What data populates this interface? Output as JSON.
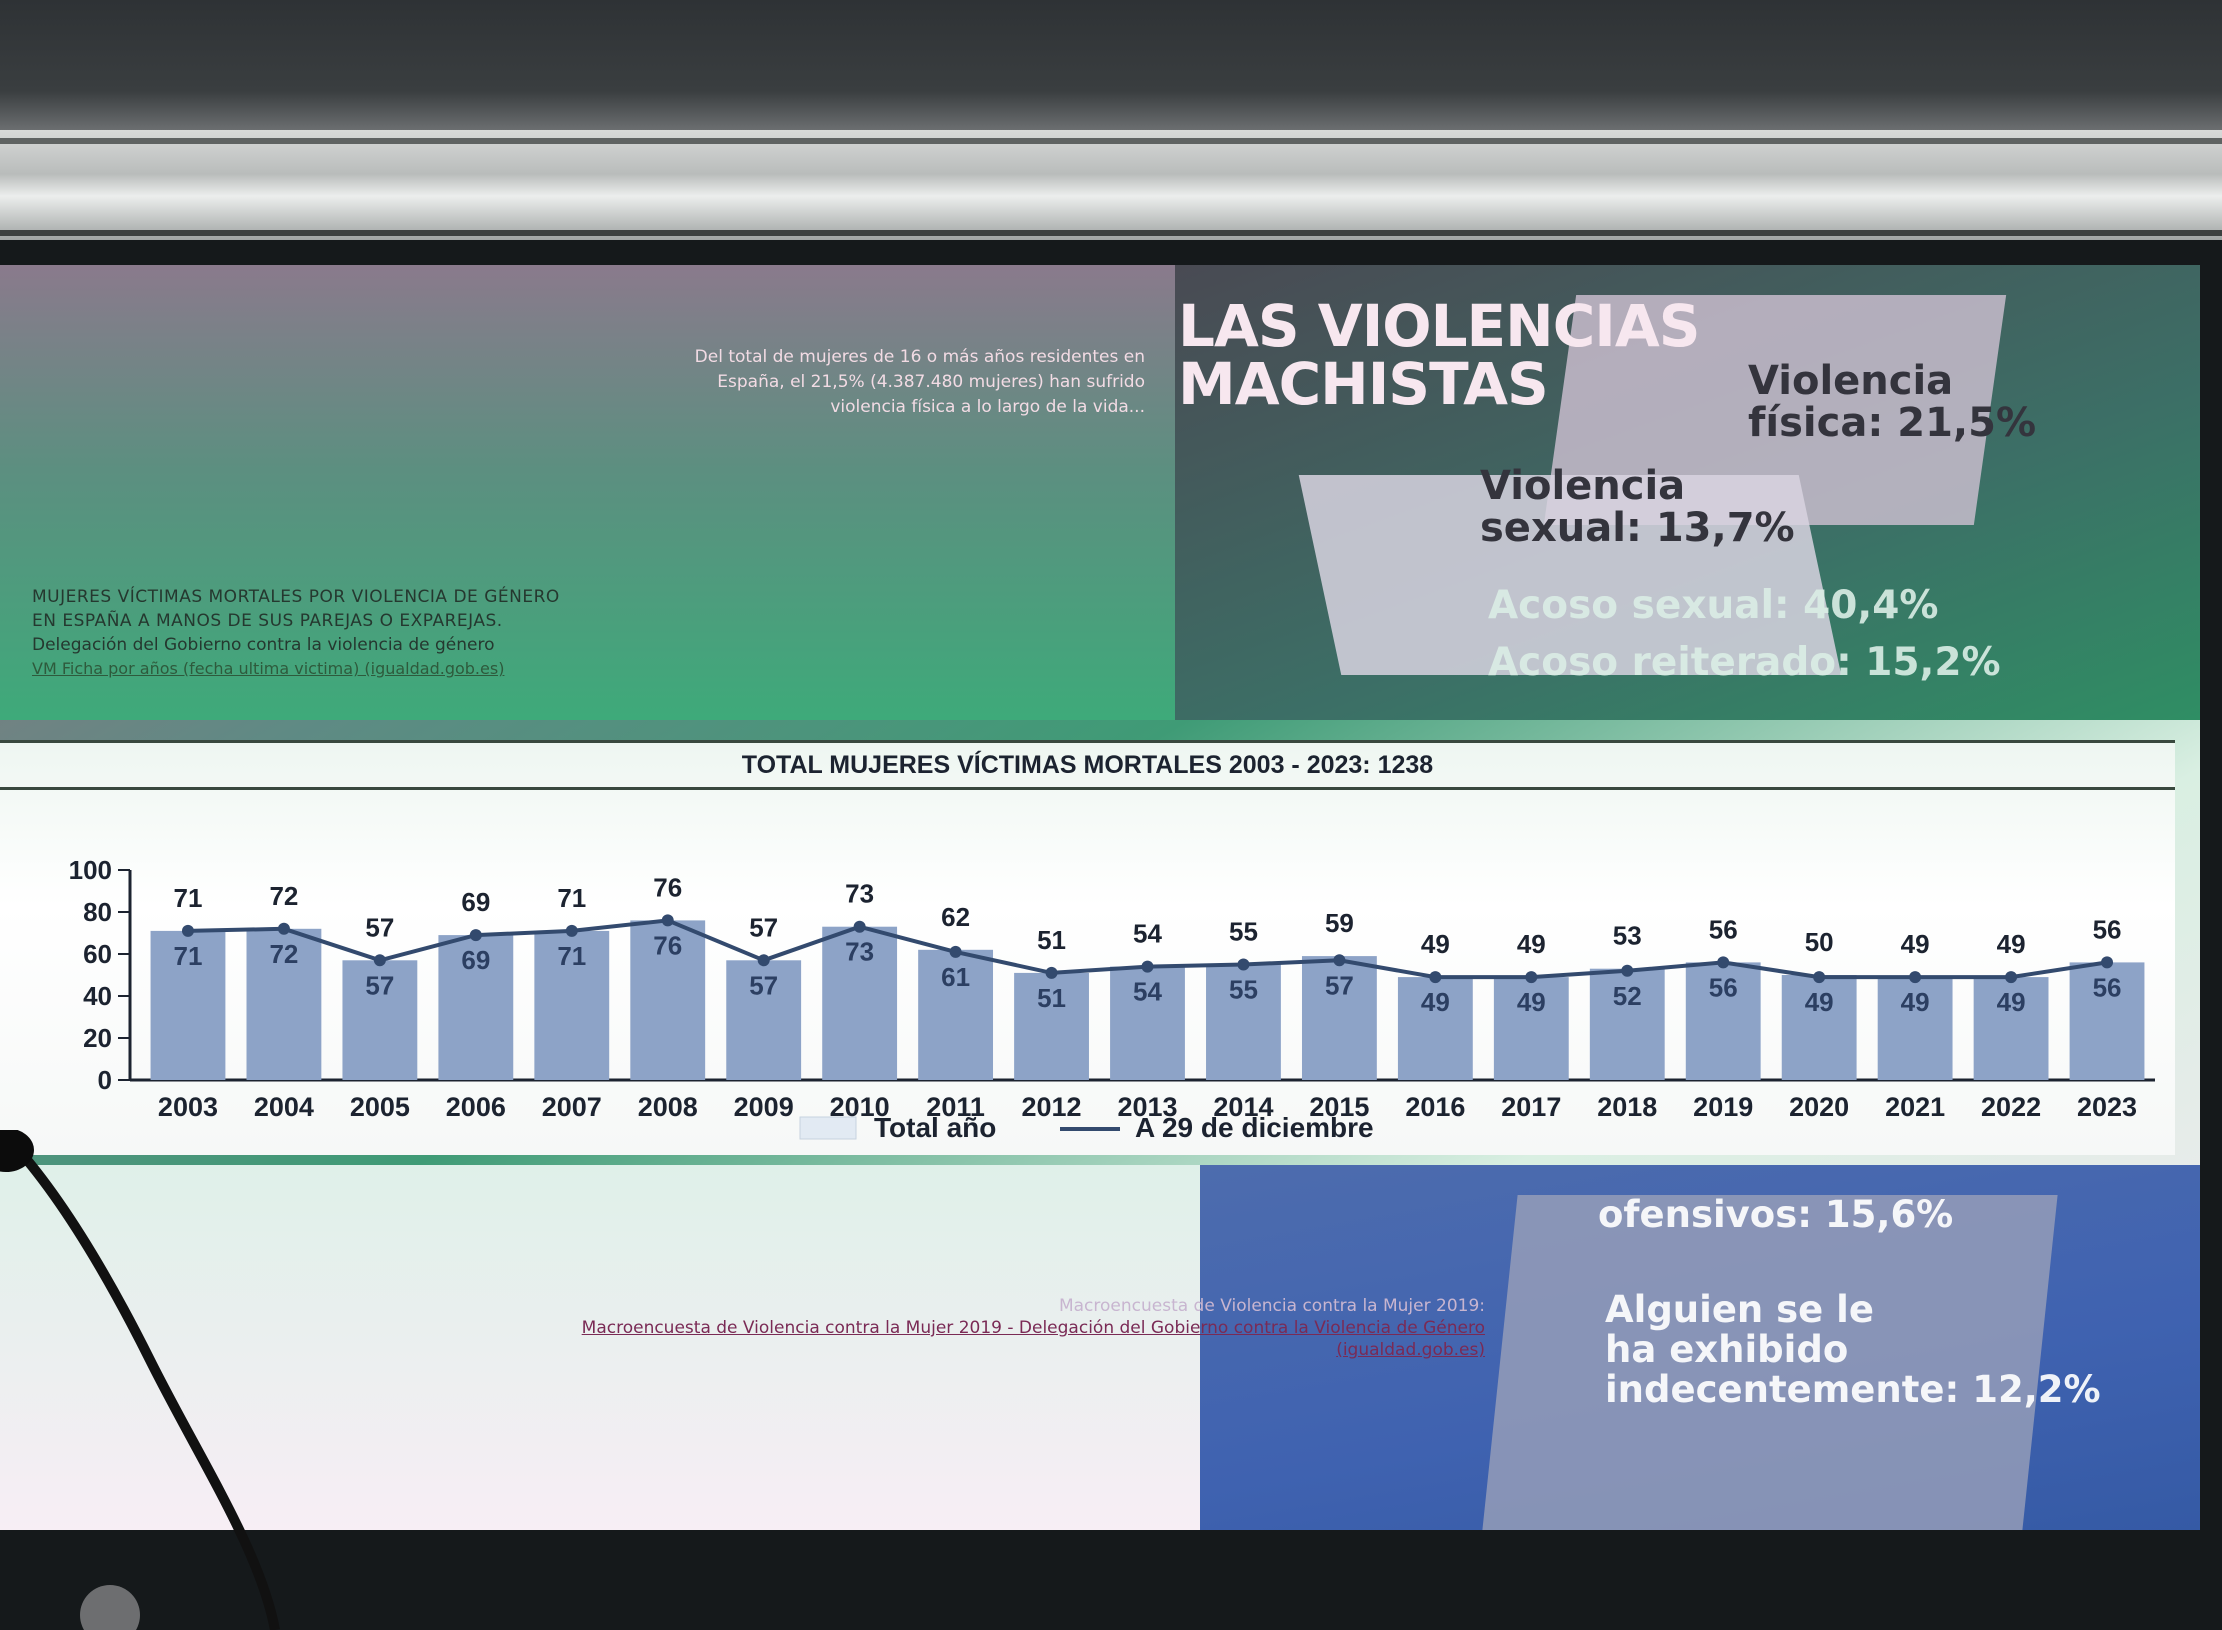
{
  "slide": {
    "intro": [
      "Del total de mujeres de 16 o más años residentes en",
      "España, el 21,5% (4.387.480 mujeres) han sufrido",
      "violencia física a lo largo de la vida..."
    ],
    "title_lines": [
      "LAS VIOLENCIAS",
      "MACHISTAS"
    ],
    "stats": {
      "fisica": [
        "Violencia",
        "física: 21,5%"
      ],
      "sexual": [
        "Violencia",
        "sexual: 13,7%"
      ],
      "acoso_sexual": "Acoso sexual: 40,4%",
      "acoso_reiterado": "Acoso reiterado: 15,2%",
      "ofensivos": "ofensivos: 15,6%",
      "exhibido": [
        "Alguien se le",
        "ha exhibido",
        "indecentemente: 12,2%"
      ]
    },
    "source_left": {
      "line1": "MUJERES VÍCTIMAS MORTALES POR VIOLENCIA DE GÉNERO",
      "line2": "EN ESPAÑA A MANOS DE SUS PAREJAS O EXPAREJAS.",
      "line3": "Delegación del Gobierno contra la violencia de género",
      "link": "VM Ficha por años (fecha ultima victima) (igualdad.gob.es)"
    },
    "footer_source": {
      "faint": "Macroencuesta de Violencia contra la Mujer 2019:",
      "link1": "Macroencuesta de Violencia contra la Mujer 2019 - Delegación del Gobierno contra la Violencia de Género",
      "link2": "(igualdad.gob.es)"
    }
  },
  "chart_data": {
    "type": "bar",
    "title": "TOTAL MUJERES VÍCTIMAS MORTALES 2003 - 2023: 1238",
    "categories": [
      "2003",
      "2004",
      "2005",
      "2006",
      "2007",
      "2008",
      "2009",
      "2010",
      "2011",
      "2012",
      "2013",
      "2014",
      "2015",
      "2016",
      "2017",
      "2018",
      "2019",
      "2020",
      "2021",
      "2022",
      "2023"
    ],
    "series": [
      {
        "name": "Total año",
        "kind": "bar",
        "color": "#8da3c7",
        "values": [
          71,
          72,
          57,
          69,
          71,
          76,
          57,
          73,
          62,
          51,
          54,
          55,
          59,
          49,
          49,
          53,
          56,
          50,
          49,
          49,
          56
        ]
      },
      {
        "name": "A 29 de diciembre",
        "kind": "line",
        "color": "#334a6e",
        "values": [
          71,
          72,
          57,
          69,
          71,
          76,
          57,
          73,
          61,
          51,
          54,
          55,
          57,
          49,
          49,
          52,
          56,
          49,
          49,
          49,
          56
        ]
      }
    ],
    "yticks": [
      "0",
      "20",
      "40",
      "60",
      "80",
      "100"
    ],
    "ylim": [
      0,
      100
    ],
    "legend": "bottom"
  },
  "colors": {
    "bar": "#8da3c7",
    "line": "#334a6e",
    "axis": "#1c2330"
  }
}
